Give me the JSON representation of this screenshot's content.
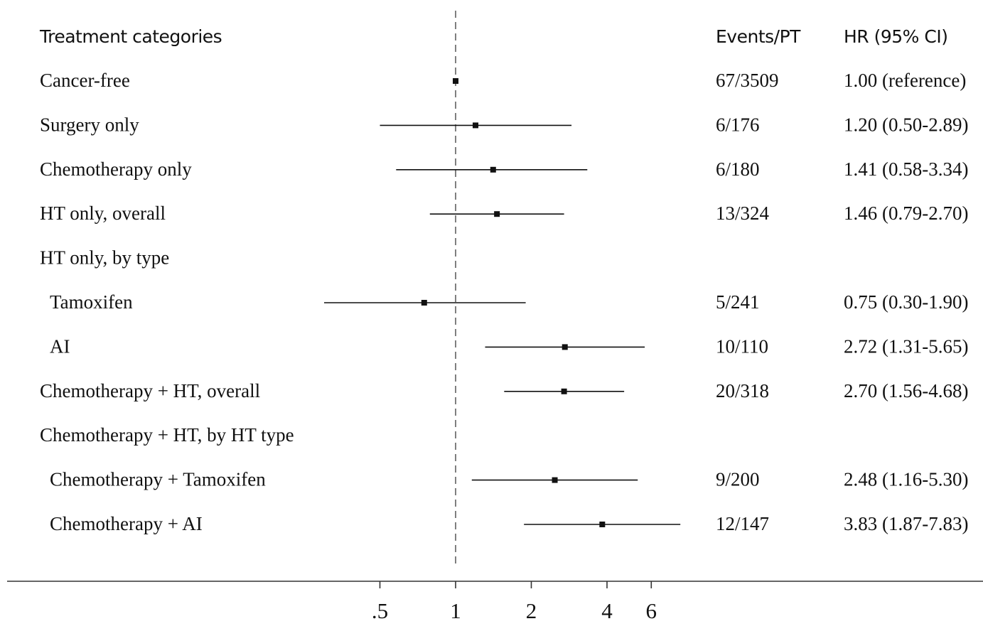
{
  "chart_data": {
    "type": "forest",
    "headers": {
      "category": "Treatment categories",
      "events": "Events/PT",
      "hr": "HR (95% CI)"
    },
    "x_scale": "log",
    "reference_line": 1,
    "x_ticks": [
      {
        "value": 0.5,
        "label": ".5"
      },
      {
        "value": 1,
        "label": "1"
      },
      {
        "value": 2,
        "label": "2"
      },
      {
        "value": 4,
        "label": "4"
      },
      {
        "value": 6,
        "label": "6"
      }
    ],
    "rows": [
      {
        "label": "Cancer-free",
        "indent": false,
        "events": "67/3509",
        "hr_text": "1.00 (reference)",
        "hr": 1.0,
        "lo": null,
        "hi": null
      },
      {
        "label": "Surgery only",
        "indent": false,
        "events": "6/176",
        "hr_text": "1.20 (0.50-2.89)",
        "hr": 1.2,
        "lo": 0.5,
        "hi": 2.89
      },
      {
        "label": "Chemotherapy only",
        "indent": false,
        "events": "6/180",
        "hr_text": "1.41 (0.58-3.34)",
        "hr": 1.41,
        "lo": 0.58,
        "hi": 3.34
      },
      {
        "label": "HT only, overall",
        "indent": false,
        "events": "13/324",
        "hr_text": "1.46 (0.79-2.70)",
        "hr": 1.46,
        "lo": 0.79,
        "hi": 2.7
      },
      {
        "label": "HT only, by type",
        "indent": false,
        "events": "",
        "hr_text": "",
        "hr": null,
        "lo": null,
        "hi": null
      },
      {
        "label": "Tamoxifen",
        "indent": true,
        "events": "5/241",
        "hr_text": "0.75 (0.30-1.90)",
        "hr": 0.75,
        "lo": 0.3,
        "hi": 1.9
      },
      {
        "label": "AI",
        "indent": true,
        "events": "10/110",
        "hr_text": "2.72 (1.31-5.65)",
        "hr": 2.72,
        "lo": 1.31,
        "hi": 5.65
      },
      {
        "label": "Chemotherapy + HT, overall",
        "indent": false,
        "events": "20/318",
        "hr_text": "2.70 (1.56-4.68)",
        "hr": 2.7,
        "lo": 1.56,
        "hi": 4.68
      },
      {
        "label": "Chemotherapy + HT, by HT type",
        "indent": false,
        "events": "",
        "hr_text": "",
        "hr": null,
        "lo": null,
        "hi": null
      },
      {
        "label": "Chemotherapy + Tamoxifen",
        "indent": true,
        "events": "9/200",
        "hr_text": "2.48 (1.16-5.30)",
        "hr": 2.48,
        "lo": 1.16,
        "hi": 5.3
      },
      {
        "label": "Chemotherapy + AI",
        "indent": true,
        "events": "12/147",
        "hr_text": "3.83 (1.87-7.83)",
        "hr": 3.83,
        "lo": 1.87,
        "hi": 7.83
      }
    ],
    "colors": {
      "ink": "#111111",
      "reference_line": "#555555",
      "axis": "#333333"
    }
  }
}
